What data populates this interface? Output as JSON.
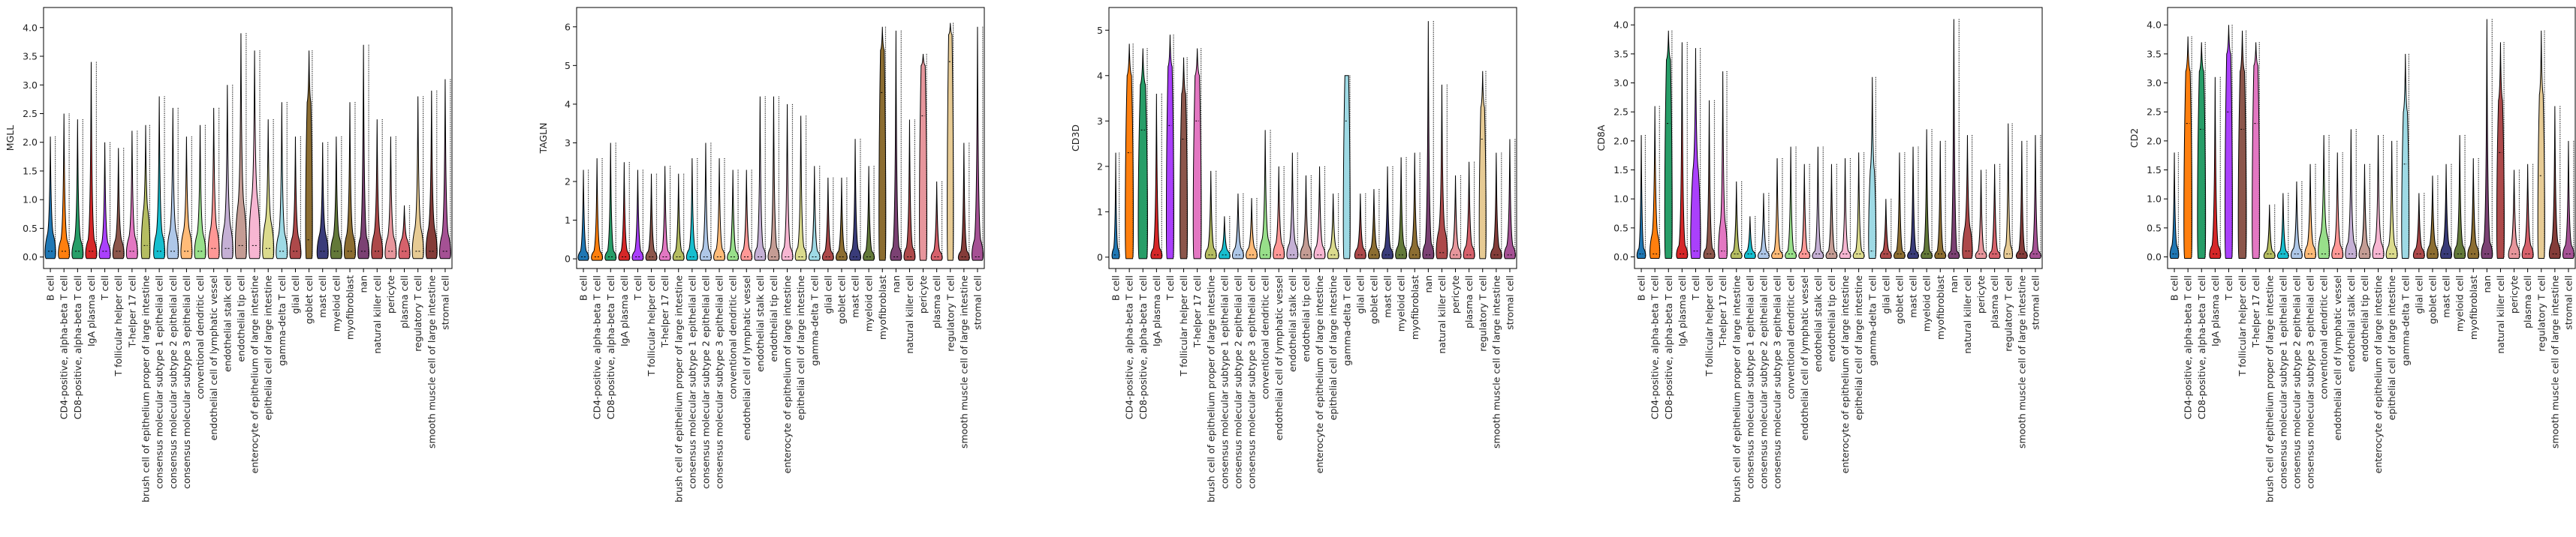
{
  "categories": [
    "B cell",
    "CD4-positive, alpha-beta T cell",
    "CD8-positive, alpha-beta T cell",
    "IgA plasma cell",
    "T cell",
    "T follicular helper cell",
    "T-helper 17 cell",
    "brush cell of epithelium proper of large intestine",
    "consensus molecular subtype 1 epithelial cell",
    "consensus molecular subtype 2 epithelial cell",
    "consensus molecular subtype 3 epithelial cell",
    "conventional dendritic cell",
    "endothelial cell of lymphatic vessel",
    "endothelial stalk cell",
    "endothelial tip cell",
    "enterocyte of epithelium of large intestine",
    "epithelial cell of large intestine",
    "gamma-delta T cell",
    "glial cell",
    "goblet cell",
    "mast cell",
    "myeloid cell",
    "myofibroblast",
    "nan",
    "natural killer cell",
    "pericyte",
    "plasma cell",
    "regulatory T cell",
    "smooth muscle cell of large intestine",
    "stromal cell"
  ],
  "colors": [
    "#1f77b4",
    "#ff7f0e",
    "#279e68",
    "#d62728",
    "#aa40fc",
    "#8c564b",
    "#e377c2",
    "#b5bd61",
    "#17becf",
    "#aec7e8",
    "#ffbb78",
    "#98df8a",
    "#ff9896",
    "#c5b0d5",
    "#c49c94",
    "#f7b6d2",
    "#dbdb8d",
    "#9edae5",
    "#ad494a",
    "#8c6d31",
    "#393b79",
    "#637939",
    "#8c6d31",
    "#7b4173",
    "#ad494a",
    "#e7969c",
    "#d6616b",
    "#e7cb94",
    "#843c39",
    "#a55194"
  ],
  "chart_data": [
    {
      "type": "violin",
      "ylabel": "MGLL",
      "ylim": [
        -0.2,
        4.35
      ],
      "yticks": [
        "0.0",
        "0.5",
        "1.0",
        "1.5",
        "2.0",
        "2.5",
        "3.0",
        "3.5",
        "4.0"
      ],
      "ytick_values": [
        0,
        0.5,
        1.0,
        1.5,
        2.0,
        2.5,
        3.0,
        3.5,
        4.0
      ],
      "max": [
        2.1,
        2.5,
        2.4,
        3.4,
        2.0,
        1.9,
        2.2,
        2.3,
        2.8,
        2.6,
        2.1,
        2.3,
        2.6,
        3.0,
        3.9,
        3.6,
        2.4,
        2.7,
        2.1,
        3.6,
        2.0,
        2.1,
        2.7,
        3.7,
        2.4,
        2.1,
        0.9,
        2.8,
        2.9,
        3.1
      ],
      "median": [
        0.1,
        0.1,
        0.1,
        0.1,
        0.1,
        0.1,
        0.1,
        0.2,
        0.1,
        0.1,
        0.1,
        0.1,
        0.15,
        0.15,
        0.2,
        0.2,
        0.15,
        0.1,
        0.1,
        0.3,
        0.1,
        0.1,
        0.1,
        0.1,
        0.1,
        0.1,
        0.1,
        0.1,
        0.1,
        0.1
      ],
      "upper": [
        0.4,
        0.3,
        0.3,
        0.3,
        0.25,
        0.3,
        0.35,
        0.8,
        0.4,
        0.45,
        0.45,
        0.4,
        0.5,
        0.55,
        0.9,
        1.0,
        0.6,
        0.4,
        0.35,
        2.7,
        0.4,
        0.35,
        0.4,
        0.35,
        0.4,
        0.35,
        0.3,
        0.5,
        0.5,
        0.4
      ],
      "width": [
        0.85,
        0.9,
        0.9,
        0.9,
        0.9,
        0.9,
        0.9,
        0.7,
        0.9,
        0.9,
        0.9,
        0.9,
        0.9,
        0.9,
        0.9,
        0.9,
        0.9,
        0.9,
        0.9,
        0.55,
        0.9,
        0.9,
        0.9,
        0.9,
        0.9,
        0.9,
        0.9,
        0.9,
        0.9,
        0.9
      ]
    },
    {
      "type": "violin",
      "ylabel": "TAGLN",
      "ylim": [
        -0.25,
        6.5
      ],
      "yticks": [
        "0",
        "1",
        "2",
        "3",
        "4",
        "5",
        "6"
      ],
      "ytick_values": [
        0,
        1,
        2,
        3,
        4,
        5,
        6
      ],
      "max": [
        2.3,
        2.6,
        3.0,
        2.5,
        2.3,
        2.2,
        2.4,
        2.2,
        2.6,
        3.0,
        2.6,
        2.3,
        2.3,
        4.2,
        4.2,
        4.0,
        3.7,
        2.4,
        2.1,
        2.1,
        3.1,
        2.4,
        6.0,
        5.9,
        3.6,
        5.3,
        2.0,
        6.1,
        3.0,
        6.0
      ],
      "median": [
        0.05,
        0.05,
        0.05,
        0.05,
        0.05,
        0.05,
        0.05,
        0.05,
        0.05,
        0.05,
        0.05,
        0.05,
        0.05,
        0.05,
        0.05,
        0.05,
        0.05,
        0.05,
        0.05,
        0.05,
        0.05,
        0.05,
        4.3,
        0.05,
        0.05,
        3.7,
        0.05,
        5.1,
        0.05,
        0.05
      ],
      "upper": [
        0.2,
        0.2,
        0.2,
        0.2,
        0.2,
        0.2,
        0.2,
        0.2,
        0.25,
        0.25,
        0.25,
        0.2,
        0.25,
        0.3,
        0.3,
        0.3,
        0.3,
        0.2,
        0.2,
        0.2,
        0.25,
        0.2,
        5.4,
        0.3,
        0.3,
        5.0,
        0.2,
        5.8,
        0.2,
        0.5
      ],
      "width": [
        0.85,
        0.9,
        0.9,
        0.9,
        0.9,
        0.9,
        0.9,
        0.9,
        0.9,
        0.9,
        0.9,
        0.9,
        0.9,
        0.9,
        0.9,
        0.9,
        0.9,
        0.9,
        0.9,
        0.9,
        0.9,
        0.9,
        0.55,
        0.9,
        0.9,
        0.6,
        0.9,
        0.5,
        0.9,
        0.9
      ]
    },
    {
      "type": "violin",
      "ylabel": "CD3D",
      "ylim": [
        -0.25,
        5.5
      ],
      "yticks": [
        "0",
        "1",
        "2",
        "3",
        "4",
        "5"
      ],
      "ytick_values": [
        0,
        1,
        2,
        3,
        4,
        5
      ],
      "max": [
        2.3,
        4.7,
        4.6,
        3.6,
        4.9,
        4.4,
        4.6,
        1.9,
        0.9,
        1.4,
        1.3,
        2.8,
        2.0,
        2.3,
        1.8,
        2.0,
        1.4,
        4.0,
        1.4,
        1.5,
        2.0,
        2.2,
        2.3,
        5.2,
        3.8,
        1.8,
        2.1,
        4.1,
        2.3,
        2.6
      ],
      "median": [
        0.05,
        2.3,
        2.8,
        0.05,
        2.9,
        2.6,
        3.0,
        0.05,
        0.05,
        0.05,
        0.05,
        0.05,
        0.05,
        0.05,
        0.05,
        0.05,
        0.05,
        3.0,
        0.05,
        0.05,
        0.05,
        0.05,
        0.05,
        0.05,
        0.1,
        0.05,
        0.05,
        2.6,
        0.05,
        0.05
      ],
      "upper": [
        0.2,
        4.0,
        3.8,
        0.2,
        4.2,
        3.6,
        4.0,
        0.2,
        0.15,
        0.2,
        0.2,
        0.4,
        0.3,
        0.3,
        0.25,
        0.25,
        0.2,
        4.0,
        0.2,
        0.2,
        0.2,
        0.25,
        0.25,
        0.3,
        0.6,
        0.2,
        0.25,
        3.3,
        0.2,
        0.25
      ],
      "width": [
        0.6,
        0.65,
        0.75,
        0.9,
        0.6,
        0.6,
        0.65,
        0.9,
        0.9,
        0.9,
        0.9,
        0.9,
        0.9,
        0.9,
        0.9,
        0.9,
        0.9,
        0.55,
        0.9,
        0.9,
        0.9,
        0.9,
        0.9,
        0.9,
        0.9,
        0.9,
        0.9,
        0.55,
        0.9,
        0.9
      ]
    },
    {
      "type": "violin",
      "ylabel": "CD8A",
      "ylim": [
        -0.2,
        4.3
      ],
      "yticks": [
        "0.0",
        "0.5",
        "1.0",
        "1.5",
        "2.0",
        "2.5",
        "3.0",
        "3.5",
        "4.0"
      ],
      "ytick_values": [
        0,
        0.5,
        1.0,
        1.5,
        2.0,
        2.5,
        3.0,
        3.5,
        4.0
      ],
      "max": [
        2.1,
        2.6,
        3.9,
        3.7,
        3.6,
        2.7,
        3.2,
        1.3,
        0.7,
        1.1,
        1.7,
        1.9,
        1.6,
        1.9,
        1.6,
        1.7,
        1.8,
        3.1,
        1.0,
        1.8,
        1.9,
        2.2,
        2.0,
        4.1,
        2.1,
        1.5,
        1.6,
        2.3,
        2.0,
        2.1
      ],
      "median": [
        0.05,
        0.05,
        2.3,
        0.05,
        0.1,
        0.05,
        0.1,
        0.05,
        0.05,
        0.05,
        0.05,
        0.05,
        0.05,
        0.05,
        0.05,
        0.05,
        0.05,
        0.1,
        0.05,
        0.05,
        0.05,
        0.05,
        0.05,
        0.05,
        0.1,
        0.05,
        0.05,
        0.05,
        0.05,
        0.05
      ],
      "upper": [
        0.15,
        0.4,
        3.4,
        0.2,
        1.5,
        0.15,
        0.6,
        0.1,
        0.1,
        0.1,
        0.1,
        0.1,
        0.1,
        0.1,
        0.1,
        0.1,
        0.1,
        1.5,
        0.1,
        0.1,
        0.1,
        0.1,
        0.1,
        0.1,
        0.5,
        0.1,
        0.1,
        0.2,
        0.1,
        0.1
      ],
      "width": [
        0.7,
        0.8,
        0.6,
        0.9,
        0.8,
        0.9,
        0.7,
        0.9,
        0.9,
        0.9,
        0.9,
        0.9,
        0.9,
        0.9,
        0.9,
        0.9,
        0.9,
        0.6,
        0.9,
        0.9,
        0.9,
        0.9,
        0.9,
        0.9,
        0.8,
        0.9,
        0.9,
        0.7,
        0.9,
        0.9
      ]
    },
    {
      "type": "violin",
      "ylabel": "CD2",
      "ylim": [
        -0.2,
        4.3
      ],
      "yticks": [
        "0.0",
        "0.5",
        "1.0",
        "1.5",
        "2.0",
        "2.5",
        "3.0",
        "3.5",
        "4.0"
      ],
      "ytick_values": [
        0,
        0.5,
        1.0,
        1.5,
        2.0,
        2.5,
        3.0,
        3.5,
        4.0
      ],
      "max": [
        1.8,
        3.8,
        3.7,
        3.1,
        4.0,
        3.9,
        3.7,
        0.9,
        1.1,
        1.3,
        1.6,
        2.1,
        1.8,
        2.2,
        1.6,
        2.1,
        2.0,
        3.5,
        1.1,
        1.4,
        1.6,
        2.1,
        1.7,
        4.1,
        3.7,
        1.5,
        1.6,
        3.9,
        2.6,
        2.0
      ],
      "median": [
        0.05,
        2.3,
        2.2,
        0.05,
        2.5,
        2.2,
        2.3,
        0.05,
        0.05,
        0.05,
        0.05,
        0.05,
        0.05,
        0.05,
        0.05,
        0.05,
        0.05,
        1.6,
        0.05,
        0.05,
        0.05,
        0.05,
        0.05,
        0.05,
        1.8,
        0.05,
        0.05,
        1.4,
        0.05,
        0.05
      ],
      "upper": [
        0.2,
        3.2,
        3.2,
        0.2,
        3.5,
        3.2,
        3.3,
        0.1,
        0.1,
        0.15,
        0.2,
        0.4,
        0.2,
        0.25,
        0.2,
        0.25,
        0.2,
        2.5,
        0.15,
        0.2,
        0.2,
        0.2,
        0.2,
        0.25,
        2.7,
        0.2,
        0.2,
        2.8,
        0.25,
        0.2
      ],
      "width": [
        0.7,
        0.65,
        0.65,
        0.9,
        0.6,
        0.65,
        0.6,
        0.9,
        0.9,
        0.9,
        0.9,
        0.9,
        0.9,
        0.9,
        0.9,
        0.9,
        0.9,
        0.6,
        0.9,
        0.9,
        0.9,
        0.9,
        0.9,
        0.9,
        0.6,
        0.9,
        0.9,
        0.55,
        0.9,
        0.9
      ]
    }
  ]
}
